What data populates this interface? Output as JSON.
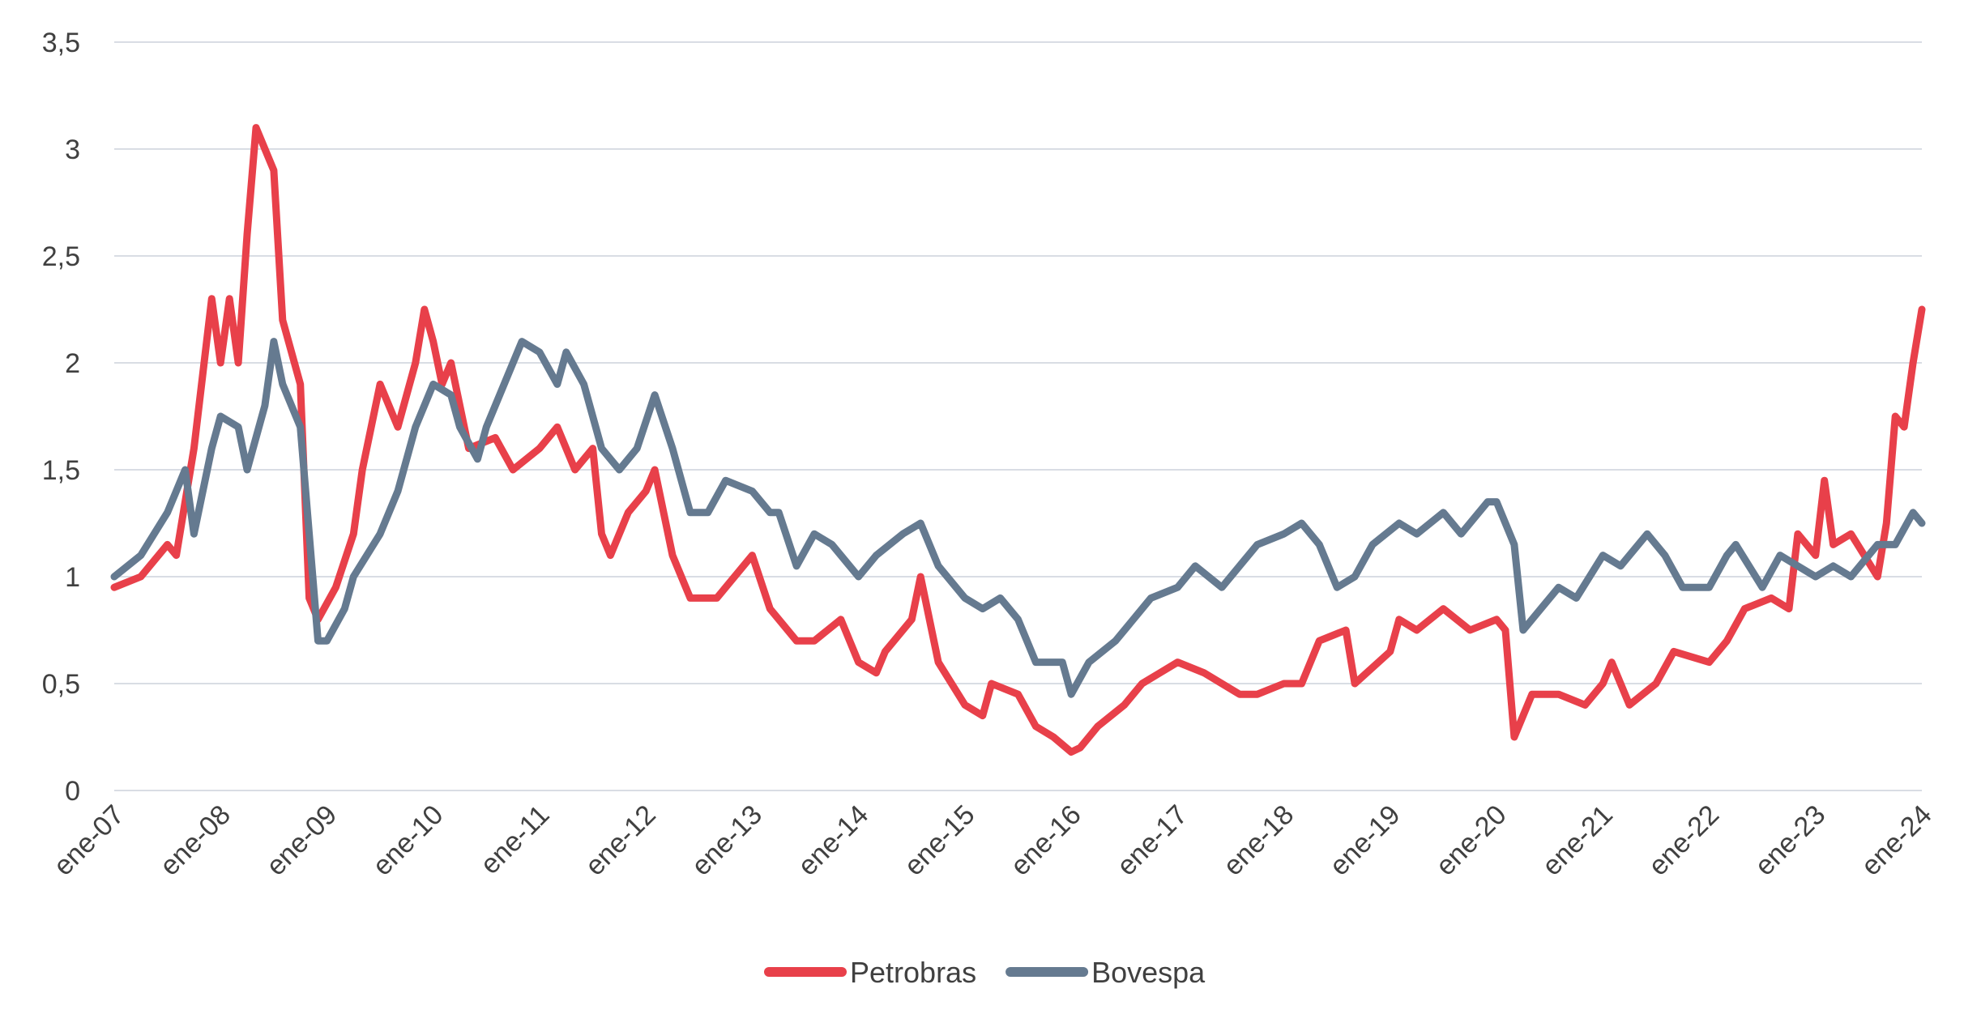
{
  "chart_data": {
    "type": "line",
    "title": "",
    "xlabel": "",
    "ylabel": "",
    "ylim": [
      0,
      3.5
    ],
    "yticks": [
      "0",
      "0,5",
      "1",
      "1,5",
      "2",
      "2,5",
      "3",
      "3,5"
    ],
    "ytick_values": [
      0,
      0.5,
      1,
      1.5,
      2,
      2.5,
      3,
      3.5
    ],
    "xlim": [
      "2007-01",
      "2024-01"
    ],
    "xticks": [
      "ene-07",
      "ene-08",
      "ene-09",
      "ene-10",
      "ene-11",
      "ene-12",
      "ene-13",
      "ene-14",
      "ene-15",
      "ene-16",
      "ene-17",
      "ene-18",
      "ene-19",
      "ene-20",
      "ene-21",
      "ene-22",
      "ene-23",
      "ene-24"
    ],
    "xtick_values": [
      "2007-01",
      "2008-01",
      "2009-01",
      "2010-01",
      "2011-01",
      "2012-01",
      "2013-01",
      "2014-01",
      "2015-01",
      "2016-01",
      "2017-01",
      "2018-01",
      "2019-01",
      "2020-01",
      "2021-01",
      "2022-01",
      "2023-01",
      "2024-01"
    ],
    "grid": "horizontal",
    "legend_position": "bottom",
    "series": [
      {
        "name": "Petrobras",
        "color": "#E8404A",
        "points": [
          [
            "2007-01",
            0.95
          ],
          [
            "2007-04",
            1.0
          ],
          [
            "2007-07",
            1.15
          ],
          [
            "2007-08",
            1.1
          ],
          [
            "2007-10",
            1.6
          ],
          [
            "2007-12",
            2.3
          ],
          [
            "2008-01",
            2.0
          ],
          [
            "2008-02",
            2.3
          ],
          [
            "2008-03",
            2.0
          ],
          [
            "2008-04",
            2.6
          ],
          [
            "2008-05",
            3.1
          ],
          [
            "2008-07",
            2.9
          ],
          [
            "2008-08",
            2.2
          ],
          [
            "2008-10",
            1.9
          ],
          [
            "2008-11",
            0.9
          ],
          [
            "2008-12",
            0.8
          ],
          [
            "2009-02",
            0.95
          ],
          [
            "2009-04",
            1.2
          ],
          [
            "2009-05",
            1.5
          ],
          [
            "2009-07",
            1.9
          ],
          [
            "2009-09",
            1.7
          ],
          [
            "2009-11",
            2.0
          ],
          [
            "2009-12",
            2.25
          ],
          [
            "2010-01",
            2.1
          ],
          [
            "2010-02",
            1.9
          ],
          [
            "2010-03",
            2.0
          ],
          [
            "2010-05",
            1.6
          ],
          [
            "2010-08",
            1.65
          ],
          [
            "2010-10",
            1.5
          ],
          [
            "2011-01",
            1.6
          ],
          [
            "2011-03",
            1.7
          ],
          [
            "2011-05",
            1.5
          ],
          [
            "2011-07",
            1.6
          ],
          [
            "2011-08",
            1.2
          ],
          [
            "2011-09",
            1.1
          ],
          [
            "2011-11",
            1.3
          ],
          [
            "2012-01",
            1.4
          ],
          [
            "2012-02",
            1.5
          ],
          [
            "2012-04",
            1.1
          ],
          [
            "2012-06",
            0.9
          ],
          [
            "2012-09",
            0.9
          ],
          [
            "2013-01",
            1.1
          ],
          [
            "2013-03",
            0.85
          ],
          [
            "2013-06",
            0.7
          ],
          [
            "2013-08",
            0.7
          ],
          [
            "2013-11",
            0.8
          ],
          [
            "2014-01",
            0.6
          ],
          [
            "2014-03",
            0.55
          ],
          [
            "2014-04",
            0.65
          ],
          [
            "2014-07",
            0.8
          ],
          [
            "2014-08",
            1.0
          ],
          [
            "2014-10",
            0.6
          ],
          [
            "2015-01",
            0.4
          ],
          [
            "2015-03",
            0.35
          ],
          [
            "2015-04",
            0.5
          ],
          [
            "2015-07",
            0.45
          ],
          [
            "2015-09",
            0.3
          ],
          [
            "2015-11",
            0.25
          ],
          [
            "2016-01",
            0.18
          ],
          [
            "2016-02",
            0.2
          ],
          [
            "2016-04",
            0.3
          ],
          [
            "2016-07",
            0.4
          ],
          [
            "2016-09",
            0.5
          ],
          [
            "2016-11",
            0.55
          ],
          [
            "2017-01",
            0.6
          ],
          [
            "2017-04",
            0.55
          ],
          [
            "2017-08",
            0.45
          ],
          [
            "2017-10",
            0.45
          ],
          [
            "2018-01",
            0.5
          ],
          [
            "2018-03",
            0.5
          ],
          [
            "2018-05",
            0.7
          ],
          [
            "2018-08",
            0.75
          ],
          [
            "2018-09",
            0.5
          ],
          [
            "2019-01",
            0.65
          ],
          [
            "2019-02",
            0.8
          ],
          [
            "2019-04",
            0.75
          ],
          [
            "2019-07",
            0.85
          ],
          [
            "2019-10",
            0.75
          ],
          [
            "2020-01",
            0.8
          ],
          [
            "2020-02",
            0.75
          ],
          [
            "2020-03",
            0.25
          ],
          [
            "2020-05",
            0.45
          ],
          [
            "2020-08",
            0.45
          ],
          [
            "2020-11",
            0.4
          ],
          [
            "2021-01",
            0.5
          ],
          [
            "2021-02",
            0.6
          ],
          [
            "2021-04",
            0.4
          ],
          [
            "2021-07",
            0.5
          ],
          [
            "2021-09",
            0.65
          ],
          [
            "2022-01",
            0.6
          ],
          [
            "2022-03",
            0.7
          ],
          [
            "2022-05",
            0.85
          ],
          [
            "2022-08",
            0.9
          ],
          [
            "2022-10",
            0.85
          ],
          [
            "2022-11",
            1.2
          ],
          [
            "2023-01",
            1.1
          ],
          [
            "2023-02",
            1.45
          ],
          [
            "2023-03",
            1.15
          ],
          [
            "2023-05",
            1.2
          ],
          [
            "2023-08",
            1.0
          ],
          [
            "2023-09",
            1.25
          ],
          [
            "2023-10",
            1.75
          ],
          [
            "2023-11",
            1.7
          ],
          [
            "2023-12",
            2.0
          ],
          [
            "2024-01",
            2.25
          ]
        ]
      },
      {
        "name": "Bovespa",
        "color": "#657A90",
        "points": [
          [
            "2007-01",
            1.0
          ],
          [
            "2007-04",
            1.1
          ],
          [
            "2007-07",
            1.3
          ],
          [
            "2007-09",
            1.5
          ],
          [
            "2007-10",
            1.2
          ],
          [
            "2007-12",
            1.6
          ],
          [
            "2008-01",
            1.75
          ],
          [
            "2008-03",
            1.7
          ],
          [
            "2008-04",
            1.5
          ],
          [
            "2008-06",
            1.8
          ],
          [
            "2008-07",
            2.1
          ],
          [
            "2008-08",
            1.9
          ],
          [
            "2008-10",
            1.7
          ],
          [
            "2008-11",
            1.2
          ],
          [
            "2008-12",
            0.7
          ],
          [
            "2009-01",
            0.7
          ],
          [
            "2009-03",
            0.85
          ],
          [
            "2009-04",
            1.0
          ],
          [
            "2009-07",
            1.2
          ],
          [
            "2009-09",
            1.4
          ],
          [
            "2009-11",
            1.7
          ],
          [
            "2010-01",
            1.9
          ],
          [
            "2010-03",
            1.85
          ],
          [
            "2010-04",
            1.7
          ],
          [
            "2010-06",
            1.55
          ],
          [
            "2010-07",
            1.7
          ],
          [
            "2010-09",
            1.9
          ],
          [
            "2010-11",
            2.1
          ],
          [
            "2011-01",
            2.05
          ],
          [
            "2011-03",
            1.9
          ],
          [
            "2011-04",
            2.05
          ],
          [
            "2011-06",
            1.9
          ],
          [
            "2011-08",
            1.6
          ],
          [
            "2011-10",
            1.5
          ],
          [
            "2011-12",
            1.6
          ],
          [
            "2012-02",
            1.85
          ],
          [
            "2012-04",
            1.6
          ],
          [
            "2012-06",
            1.3
          ],
          [
            "2012-08",
            1.3
          ],
          [
            "2012-10",
            1.45
          ],
          [
            "2013-01",
            1.4
          ],
          [
            "2013-03",
            1.3
          ],
          [
            "2013-04",
            1.3
          ],
          [
            "2013-06",
            1.05
          ],
          [
            "2013-08",
            1.2
          ],
          [
            "2013-10",
            1.15
          ],
          [
            "2014-01",
            1.0
          ],
          [
            "2014-03",
            1.1
          ],
          [
            "2014-06",
            1.2
          ],
          [
            "2014-08",
            1.25
          ],
          [
            "2014-10",
            1.05
          ],
          [
            "2015-01",
            0.9
          ],
          [
            "2015-03",
            0.85
          ],
          [
            "2015-05",
            0.9
          ],
          [
            "2015-07",
            0.8
          ],
          [
            "2015-09",
            0.6
          ],
          [
            "2015-12",
            0.6
          ],
          [
            "2016-01",
            0.45
          ],
          [
            "2016-03",
            0.6
          ],
          [
            "2016-06",
            0.7
          ],
          [
            "2016-08",
            0.8
          ],
          [
            "2016-10",
            0.9
          ],
          [
            "2017-01",
            0.95
          ],
          [
            "2017-03",
            1.05
          ],
          [
            "2017-06",
            0.95
          ],
          [
            "2017-08",
            1.05
          ],
          [
            "2017-10",
            1.15
          ],
          [
            "2018-01",
            1.2
          ],
          [
            "2018-03",
            1.25
          ],
          [
            "2018-05",
            1.15
          ],
          [
            "2018-07",
            0.95
          ],
          [
            "2018-09",
            1.0
          ],
          [
            "2018-11",
            1.15
          ],
          [
            "2019-02",
            1.25
          ],
          [
            "2019-04",
            1.2
          ],
          [
            "2019-07",
            1.3
          ],
          [
            "2019-09",
            1.2
          ],
          [
            "2019-12",
            1.35
          ],
          [
            "2020-01",
            1.35
          ],
          [
            "2020-03",
            1.15
          ],
          [
            "2020-04",
            0.75
          ],
          [
            "2020-06",
            0.85
          ],
          [
            "2020-08",
            0.95
          ],
          [
            "2020-10",
            0.9
          ],
          [
            "2021-01",
            1.1
          ],
          [
            "2021-03",
            1.05
          ],
          [
            "2021-06",
            1.2
          ],
          [
            "2021-08",
            1.1
          ],
          [
            "2021-10",
            0.95
          ],
          [
            "2022-01",
            0.95
          ],
          [
            "2022-03",
            1.1
          ],
          [
            "2022-04",
            1.15
          ],
          [
            "2022-07",
            0.95
          ],
          [
            "2022-09",
            1.1
          ],
          [
            "2022-11",
            1.05
          ],
          [
            "2023-01",
            1.0
          ],
          [
            "2023-03",
            1.05
          ],
          [
            "2023-05",
            1.0
          ],
          [
            "2023-08",
            1.15
          ],
          [
            "2023-10",
            1.15
          ],
          [
            "2023-12",
            1.3
          ],
          [
            "2024-01",
            1.25
          ]
        ]
      }
    ]
  }
}
